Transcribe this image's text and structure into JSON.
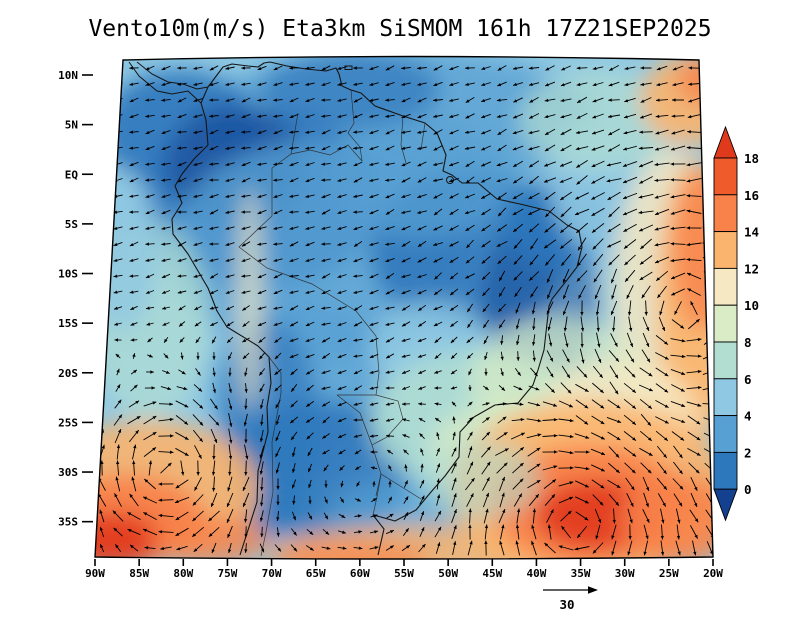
{
  "title": "Vento10m(m/s) Eta3km SiSMOM 161h 17Z21SEP2025",
  "axes": {
    "lat_labels": [
      "10N",
      "5N",
      "EQ",
      "5S",
      "10S",
      "15S",
      "20S",
      "25S",
      "30S",
      "35S"
    ],
    "lon_labels": [
      "90W",
      "85W",
      "80W",
      "75W",
      "70W",
      "65W",
      "60W",
      "55W",
      "50W",
      "45W",
      "40W",
      "35W",
      "30W",
      "25W",
      "20W"
    ]
  },
  "colorbar": {
    "labels": [
      "18",
      "16",
      "14",
      "12",
      "10",
      "8",
      "6",
      "4",
      "2",
      "0"
    ],
    "colors_top_to_bottom": [
      "#e03a1d",
      "#ef5b2a",
      "#f8824a",
      "#fbb46d",
      "#f6e8c2",
      "#d9ecc5",
      "#b2ded2",
      "#8fc8e2",
      "#57a0d3",
      "#2d77bc",
      "#14418f"
    ]
  },
  "reference_vector": {
    "label": "30"
  },
  "chart_data": {
    "type": "heatmap",
    "title": "Vento10m(m/s) Eta3km SiSMOM 161h 17Z21SEP2025",
    "variable": "Vento 10m - 10 metre wind speed (m/s) shaded, with wind direction vectors",
    "model": "Eta3km",
    "system": "SiSMOM",
    "forecast_hour": 161,
    "valid_time": "17Z21SEP2025",
    "region": "South America (90W-20W, 10N-35S)",
    "x_tick_labels": [
      "90W",
      "85W",
      "80W",
      "75W",
      "70W",
      "65W",
      "60W",
      "55W",
      "50W",
      "45W",
      "40W",
      "35W",
      "30W",
      "25W",
      "20W"
    ],
    "y_tick_labels": [
      "10N",
      "5N",
      "EQ",
      "5S",
      "10S",
      "15S",
      "20S",
      "25S",
      "30S",
      "35S"
    ],
    "colorbar_levels": [
      0,
      2,
      4,
      6,
      8,
      10,
      12,
      14,
      16,
      18
    ],
    "colorbar_colors_low_to_high": [
      "#14418f",
      "#2d77bc",
      "#57a0d3",
      "#8fc8e2",
      "#b2ded2",
      "#d9ecc5",
      "#f6e8c2",
      "#fbb46d",
      "#f8824a",
      "#ef5b2a",
      "#e03a1d"
    ],
    "reference_vector_m_s": 30,
    "legend_position": "right",
    "pattern_summary": "Weak winds (blue, 0-6 m/s) over the Amazon basin and continental interior; strong winds (orange-red, 12-18+ m/s) over the SE Pacific corner, along the eastern 20-25W edge, and over the South Atlantic near 30-35S where a cyclonic swirl is visible."
  }
}
